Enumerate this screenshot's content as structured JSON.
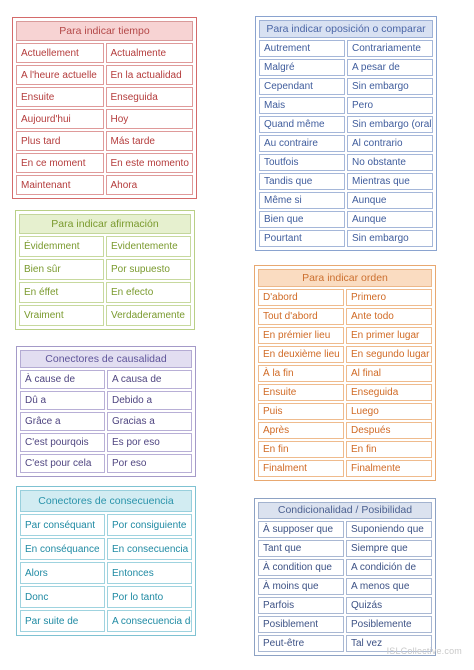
{
  "cards": {
    "tiempo": {
      "title": "Para indicar tiempo",
      "rows": [
        [
          "Actuellement",
          "Actualmente"
        ],
        [
          "A l'heure actuelle",
          "En la actualidad"
        ],
        [
          "Ensuite",
          "Enseguida"
        ],
        [
          "Aujourd'hui",
          "Hoy"
        ],
        [
          "Plus tard",
          "Más tarde"
        ],
        [
          "En ce moment",
          "En este momento"
        ],
        [
          "Maintenant",
          "Ahora"
        ]
      ]
    },
    "oposicion": {
      "title": "Para indicar oposición o comparar",
      "rows": [
        [
          "Autrement",
          "Contrariamente"
        ],
        [
          "Malgré",
          "A pesar de"
        ],
        [
          "Cependant",
          "Sin embargo"
        ],
        [
          "Mais",
          "Pero"
        ],
        [
          "Quand même",
          "Sin embargo (oral)"
        ],
        [
          "Au contraire",
          "Al contrario"
        ],
        [
          "Toutfois",
          "No obstante"
        ],
        [
          "Tandis que",
          "Mientras que"
        ],
        [
          "Même si",
          "Aunque"
        ],
        [
          "Bien que",
          "Aunque"
        ],
        [
          "Pourtant",
          "Sin embargo"
        ]
      ]
    },
    "afirmacion": {
      "title": "Para indicar afirmación",
      "rows": [
        [
          "Évidemment",
          "Evidentemente"
        ],
        [
          "Bien sûr",
          "Por supuesto"
        ],
        [
          "En éffet",
          "En efecto"
        ],
        [
          "Vraiment",
          "Verdaderamente"
        ]
      ]
    },
    "orden": {
      "title": "Para indicar orden",
      "rows": [
        [
          "D'abord",
          "Primero"
        ],
        [
          "Tout d'abord",
          "Ante todo"
        ],
        [
          "En prémier lieu",
          "En primer lugar"
        ],
        [
          "En deuxième lieu",
          "En segundo lugar"
        ],
        [
          "À la fin",
          "Al final"
        ],
        [
          "Ensuite",
          "Enseguida"
        ],
        [
          "Puis",
          "Luego"
        ],
        [
          "Après",
          "Después"
        ],
        [
          "En fin",
          "En fin"
        ],
        [
          "Finalment",
          "Finalmente"
        ]
      ]
    },
    "causalidad": {
      "title": "Conectores de causalidad",
      "rows": [
        [
          "À cause de",
          "A causa de"
        ],
        [
          "Dû a",
          "Debido a"
        ],
        [
          "Grâce a",
          "Gracias a"
        ],
        [
          "C'est pourqois",
          "Es por eso"
        ],
        [
          "C'est pour cela",
          "Por eso"
        ]
      ]
    },
    "consecuencia": {
      "title": "Conectores de consecuencia",
      "rows": [
        [
          "Par conséquant",
          "Por consiguiente"
        ],
        [
          "En conséquance",
          "En consecuencia"
        ],
        [
          "Alors",
          "Entonces"
        ],
        [
          "Donc",
          "Por lo tanto"
        ],
        [
          "Par suite de",
          "A consecuencia de"
        ]
      ]
    },
    "condicionalidad": {
      "title": "Condicionalidad / Posibilidad",
      "rows": [
        [
          "À supposer que",
          "Suponiendo que"
        ],
        [
          "Tant que",
          "Siempre que"
        ],
        [
          "À condition que",
          "A condición de"
        ],
        [
          "À moins que",
          "A menos que"
        ],
        [
          "Parfois",
          "Quizás"
        ],
        [
          "Posiblement",
          "Posiblemente"
        ],
        [
          "Peut-être",
          "Tal vez"
        ]
      ]
    }
  },
  "watermark": "ISLCollective.com"
}
